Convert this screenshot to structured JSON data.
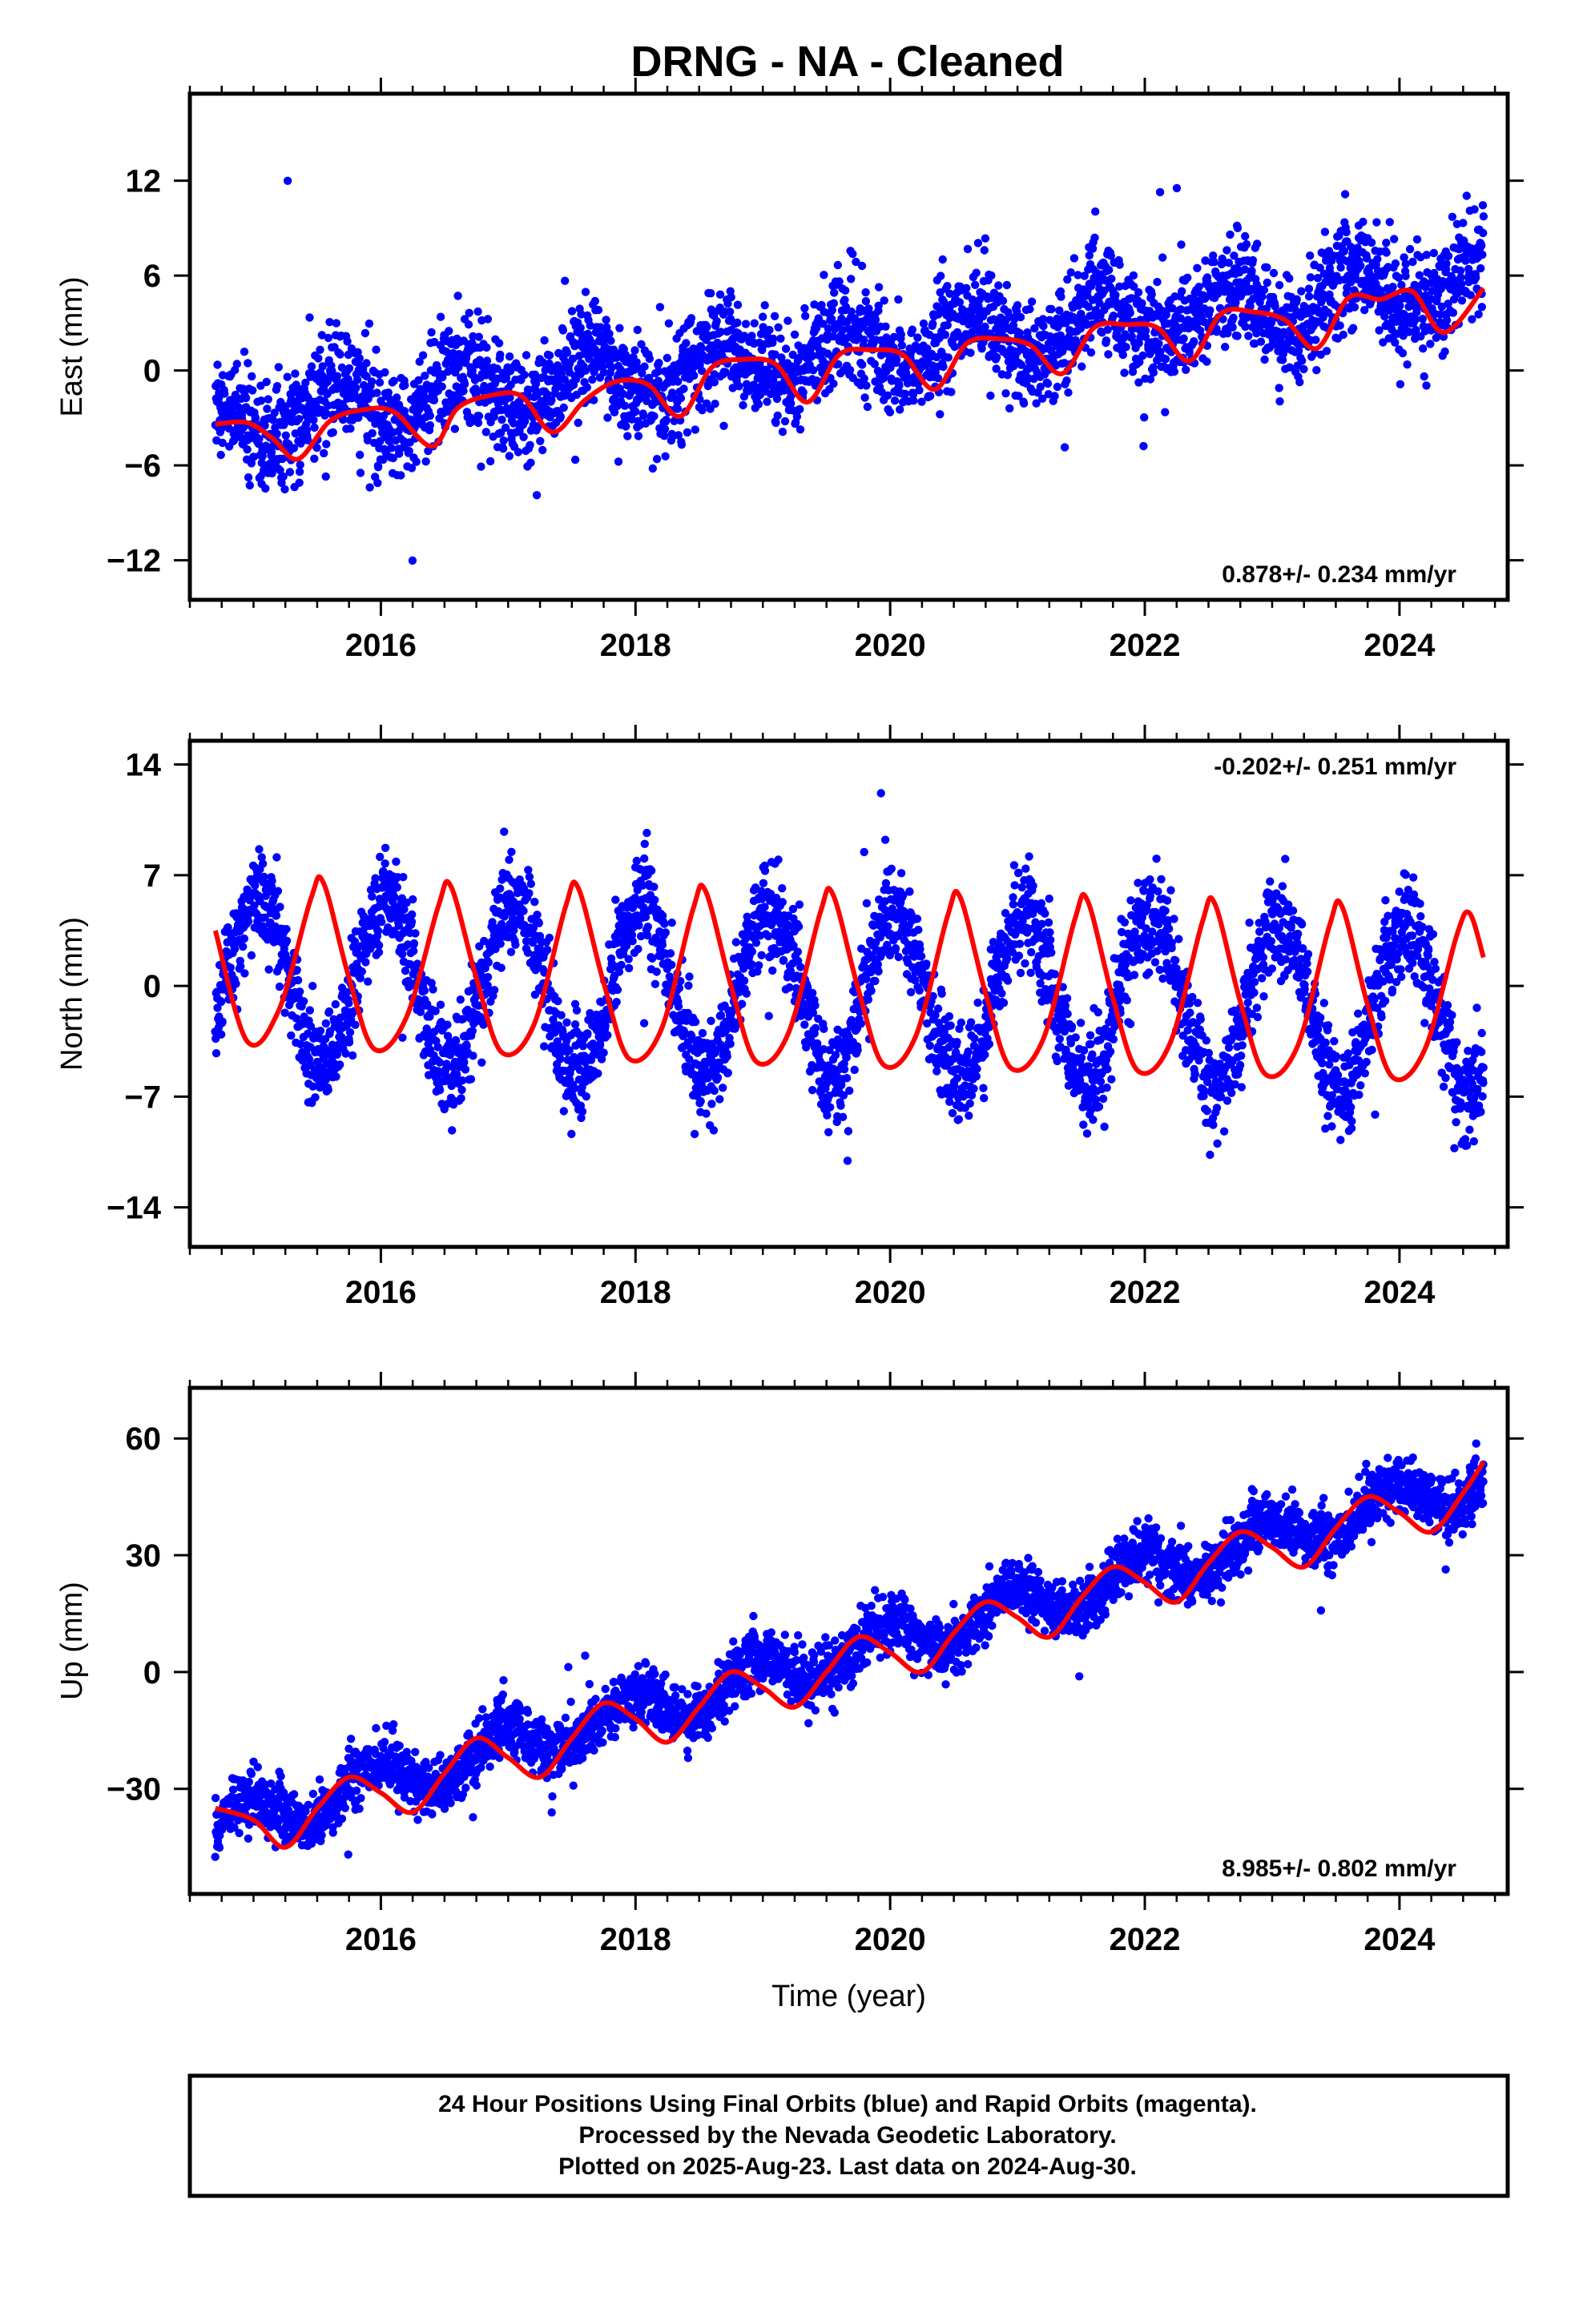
{
  "title": "DRNG  - NA - Cleaned",
  "footer": {
    "line1": "24 Hour Positions Using Final Orbits (blue) and Rapid Orbits (magenta).",
    "line2": "Processed by the Nevada Geodetic Laboratory.",
    "line3": "Plotted on 2025-Aug-23. Last data on 2024-Aug-30."
  },
  "colors": {
    "points": "#0000ff",
    "model": "#ff0000",
    "frame": "#000000"
  },
  "chart_data": [
    {
      "type": "scatter",
      "ylabel": "East (mm)",
      "xlabel": "",
      "xlim": [
        2014.5,
        2024.85
      ],
      "ylim": [
        -14.5,
        17.5
      ],
      "xticks": [
        2016,
        2018,
        2020,
        2022,
        2024
      ],
      "xtick_labels": [
        "2016",
        "2018",
        "2020",
        "2022",
        "2024"
      ],
      "yticks": [
        -12,
        -6,
        0,
        6,
        12
      ],
      "ytick_labels": [
        "−12",
        "−6",
        "0",
        "6",
        "12"
      ],
      "rate_label": "0.878+/- 0.234 mm/yr",
      "rate_position": "bottom-right",
      "series": [
        {
          "name": "Final Orbits",
          "kind": "points",
          "color": "#0000ff",
          "model": {
            "t0": 2014.7,
            "t1": 2024.66,
            "y0": -3.2,
            "slope": 0.878,
            "annual_amp": 1.6,
            "annual_phase": 1.9,
            "noise": 1.7
          }
        },
        {
          "kind": "line",
          "color": "#ff0000",
          "x": [
            2014.7,
            2014.95,
            2015.15,
            2015.35,
            2015.6,
            2015.85,
            2016.1,
            2016.4,
            2016.6,
            2016.85,
            2017.1,
            2017.35,
            2017.6,
            2017.85,
            2018.1,
            2018.35,
            2018.6,
            2018.85,
            2019.1,
            2019.35,
            2019.6,
            2019.85,
            2020.1,
            2020.35,
            2020.6,
            2020.85,
            2021.1,
            2021.35,
            2021.6,
            2021.85,
            2022.1,
            2022.35,
            2022.6,
            2022.85,
            2023.1,
            2023.35,
            2023.6,
            2023.85,
            2024.1,
            2024.35,
            2024.66
          ],
          "y": [
            -3.4,
            -3.3,
            -4.3,
            -5.6,
            -3.2,
            -2.5,
            -2.6,
            -4.8,
            -2.4,
            -1.6,
            -1.6,
            -3.9,
            -1.9,
            -0.7,
            -0.9,
            -2.9,
            0.2,
            0.7,
            0.4,
            -2.0,
            1.0,
            1.3,
            1.0,
            -1.2,
            1.7,
            2.0,
            1.6,
            -0.2,
            2.7,
            2.9,
            2.7,
            0.6,
            3.6,
            3.7,
            3.2,
            1.4,
            4.6,
            4.5,
            5.0,
            2.4,
            5.2
          ]
        }
      ]
    },
    {
      "type": "scatter",
      "ylabel": "North (mm)",
      "xlabel": "",
      "xlim": [
        2014.5,
        2024.85
      ],
      "ylim": [
        -16.5,
        15.5
      ],
      "xticks": [
        2016,
        2018,
        2020,
        2022,
        2024
      ],
      "xtick_labels": [
        "2016",
        "2018",
        "2020",
        "2022",
        "2024"
      ],
      "yticks": [
        -14,
        -7,
        0,
        7,
        14
      ],
      "ytick_labels": [
        "−14",
        "−7",
        "0",
        "7",
        "14"
      ],
      "rate_label": "-0.202+/- 0.251 mm/yr",
      "rate_position": "top-right",
      "series": [
        {
          "name": "Final Orbits",
          "kind": "points",
          "color": "#0000ff",
          "model": {
            "t0": 2014.7,
            "t1": 2024.66,
            "y0": 0.5,
            "slope": -0.202,
            "annual_amp": 5.3,
            "annual_phase": -0.6,
            "noise": 1.6
          }
        },
        {
          "kind": "line",
          "color": "#ff0000",
          "x": [
            2014.7,
            2014.95,
            2015.2,
            2015.45,
            2015.55,
            2015.75,
            2015.95,
            2016.2,
            2016.45,
            2016.55,
            2016.75,
            2016.95,
            2017.2,
            2017.45,
            2017.55,
            2017.75,
            2017.95,
            2018.2,
            2018.45,
            2018.55,
            2018.75,
            2018.95,
            2019.2,
            2019.45,
            2019.55,
            2019.75,
            2019.95,
            2020.2,
            2020.45,
            2020.55,
            2020.75,
            2020.95,
            2021.2,
            2021.45,
            2021.55,
            2021.75,
            2021.95,
            2022.2,
            2022.45,
            2022.55,
            2022.75,
            2022.95,
            2023.2,
            2023.45,
            2023.55,
            2023.75,
            2023.95,
            2024.2,
            2024.45,
            2024.55,
            2024.66
          ],
          "y": [
            3.5,
            -3.5,
            -1.5,
            5.5,
            6.5,
            0.5,
            -4.0,
            -2.0,
            5.0,
            6.3,
            0.5,
            -4.2,
            -2.5,
            5.0,
            6.2,
            0.2,
            -4.6,
            -2.8,
            4.8,
            6.0,
            0.0,
            -4.8,
            -3.0,
            4.6,
            5.8,
            -0.2,
            -5.0,
            -3.2,
            4.4,
            5.6,
            -0.5,
            -5.2,
            -3.4,
            4.2,
            5.4,
            -0.8,
            -5.4,
            -3.6,
            4.0,
            5.2,
            -1.0,
            -5.6,
            -3.8,
            3.8,
            5.0,
            -1.2,
            -5.8,
            -4.0,
            3.2,
            4.6,
            1.8
          ]
        }
      ]
    },
    {
      "type": "scatter",
      "ylabel": "Up (mm)",
      "xlabel": "Time (year)",
      "xlim": [
        2014.5,
        2024.85
      ],
      "ylim": [
        -57,
        73
      ],
      "xticks": [
        2016,
        2018,
        2020,
        2022,
        2024
      ],
      "xtick_labels": [
        "2016",
        "2018",
        "2020",
        "2022",
        "2024"
      ],
      "yticks": [
        -30,
        0,
        30,
        60
      ],
      "ytick_labels": [
        "−30",
        "0",
        "30",
        "60"
      ],
      "rate_label": "8.985+/- 0.802 mm/yr",
      "rate_position": "bottom-right",
      "series": [
        {
          "name": "Final Orbits",
          "kind": "points",
          "color": "#0000ff",
          "model": {
            "t0": 2014.7,
            "t1": 2024.66,
            "y0": -40,
            "slope": 8.985,
            "annual_amp": 5.0,
            "annual_phase": 0.0,
            "noise": 3.8
          }
        },
        {
          "kind": "line",
          "color": "#ff0000",
          "x": [
            2014.7,
            2015.0,
            2015.25,
            2015.5,
            2015.75,
            2016.0,
            2016.25,
            2016.5,
            2016.75,
            2017.0,
            2017.25,
            2017.5,
            2017.75,
            2018.0,
            2018.25,
            2018.5,
            2018.75,
            2019.0,
            2019.25,
            2019.5,
            2019.75,
            2020.0,
            2020.25,
            2020.5,
            2020.75,
            2021.0,
            2021.25,
            2021.5,
            2021.75,
            2022.0,
            2022.25,
            2022.5,
            2022.75,
            2023.0,
            2023.25,
            2023.5,
            2023.75,
            2024.0,
            2024.25,
            2024.5,
            2024.66
          ],
          "y": [
            -35,
            -38,
            -45,
            -35,
            -27,
            -31,
            -36,
            -26,
            -17,
            -22,
            -27,
            -17,
            -8,
            -12,
            -18,
            -9,
            0,
            -4,
            -9,
            0,
            9,
            5,
            0,
            10,
            18,
            14,
            9,
            19,
            27,
            23,
            18,
            28,
            36,
            32,
            27,
            37,
            45,
            41,
            36,
            46,
            54
          ]
        }
      ]
    }
  ]
}
